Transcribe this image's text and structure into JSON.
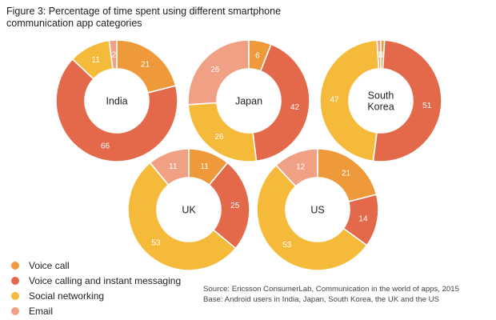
{
  "title": "Figure 3: Percentage of time spent using different smartphone communication app categories",
  "legend": [
    {
      "label": "Voice call",
      "color": "#EE9A3A"
    },
    {
      "label": "Voice calling and instant messaging",
      "color": "#E4694A"
    },
    {
      "label": "Social networking",
      "color": "#F6BA3A"
    },
    {
      "label": "Email",
      "color": "#F0A084"
    }
  ],
  "source": {
    "line1": "Source: Ericsson ConsumerLab, Communication in the world of apps, 2015",
    "line2": "Base: Android users in India, Japan, South Korea, the UK and the US"
  },
  "chart_data": {
    "type": "pie",
    "variant": "donut",
    "title": "Figure 3: Percentage of time spent using different smartphone communication app categories",
    "categories": [
      "Voice call",
      "Voice calling and instant messaging",
      "Social networking",
      "Email"
    ],
    "charts": [
      {
        "name": "India",
        "label_lines": [
          "India"
        ],
        "values": [
          21,
          66,
          11,
          2
        ]
      },
      {
        "name": "Japan",
        "label_lines": [
          "Japan"
        ],
        "values": [
          6,
          42,
          26,
          26
        ]
      },
      {
        "name": "South Korea",
        "label_lines": [
          "South",
          "Korea"
        ],
        "values": [
          1,
          51,
          47,
          1
        ]
      },
      {
        "name": "UK",
        "label_lines": [
          "UK"
        ],
        "values": [
          11,
          25,
          53,
          11
        ]
      },
      {
        "name": "US",
        "label_lines": [
          "US"
        ],
        "values": [
          21,
          14,
          53,
          12
        ]
      }
    ]
  }
}
